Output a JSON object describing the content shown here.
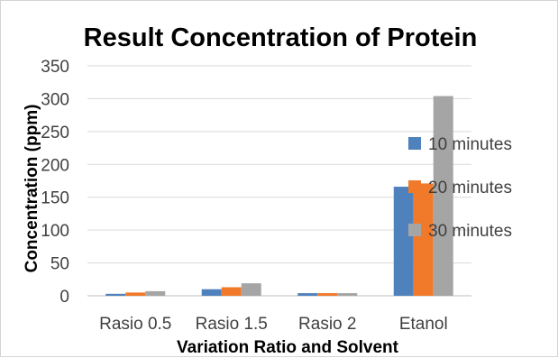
{
  "chart_data": {
    "type": "bar",
    "title": "Result Concentration of Protein",
    "xlabel": "Variation  Ratio and Solvent",
    "ylabel": "Concentration (ppm)",
    "categories": [
      "Rasio 0.5",
      "Rasio 1.5",
      "Rasio 2",
      "Etanol"
    ],
    "series": [
      {
        "name": "10 minutes",
        "color": "#4f81bd",
        "values": [
          3,
          10,
          4,
          166
        ]
      },
      {
        "name": "20 minutes",
        "color": "#f07a2a",
        "values": [
          5,
          13,
          4,
          171
        ]
      },
      {
        "name": "30 minutes",
        "color": "#a5a5a5",
        "values": [
          7,
          19,
          4,
          304
        ]
      }
    ],
    "ylim": [
      0,
      350
    ],
    "yticks": [
      0,
      50,
      100,
      150,
      200,
      250,
      300,
      350
    ],
    "grid": true,
    "legend": "right"
  }
}
